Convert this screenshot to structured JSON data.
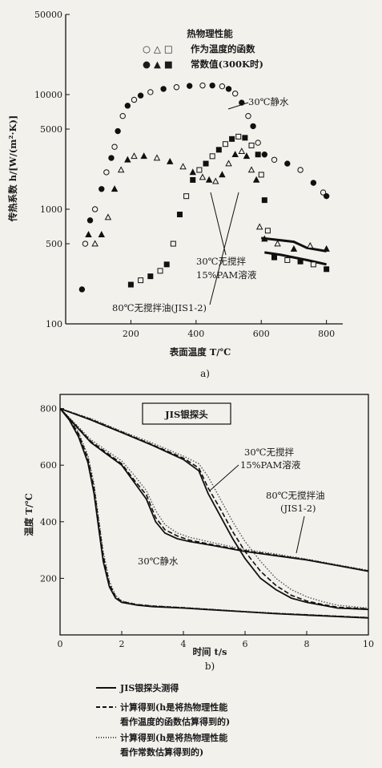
{
  "chart_data": [
    {
      "type": "scatter",
      "panel_caption": "a)",
      "xlabel": "表面温度 T/℃",
      "ylabel": "传热系数 h/[W/(m²·K)]",
      "yscale": "log",
      "xlim": [
        0,
        850
      ],
      "ylim": [
        100,
        50000
      ],
      "x_ticks": [
        "200",
        "400",
        "600",
        "800"
      ],
      "y_ticks": [
        "100",
        "500",
        "1000",
        "5000",
        "10000",
        "50000"
      ],
      "legend_title": "热物理性能",
      "legend": [
        {
          "markers": "○ △ □",
          "label": "作为温度的函数"
        },
        {
          "markers": "● ▲ ■",
          "label": "常数值(300K时)"
        }
      ],
      "series": [
        {
          "name": "30℃静水",
          "marker": "circle",
          "points": [
            [
              50,
              200
            ],
            [
              60,
              500
            ],
            [
              75,
              800
            ],
            [
              90,
              1000
            ],
            [
              110,
              1500
            ],
            [
              125,
              2100
            ],
            [
              140,
              2800
            ],
            [
              150,
              3500
            ],
            [
              160,
              4800
            ],
            [
              175,
              6500
            ],
            [
              190,
              8000
            ],
            [
              210,
              9000
            ],
            [
              230,
              9800
            ],
            [
              260,
              10500
            ],
            [
              300,
              11200
            ],
            [
              340,
              11600
            ],
            [
              380,
              11900
            ],
            [
              420,
              12000
            ],
            [
              450,
              12000
            ],
            [
              480,
              11800
            ],
            [
              500,
              11200
            ],
            [
              520,
              10200
            ],
            [
              540,
              8500
            ],
            [
              560,
              6500
            ],
            [
              575,
              5300
            ],
            [
              590,
              3800
            ],
            [
              610,
              3000
            ],
            [
              640,
              2700
            ],
            [
              680,
              2500
            ],
            [
              720,
              2200
            ],
            [
              760,
              1700
            ],
            [
              790,
              1400
            ],
            [
              800,
              1300
            ]
          ]
        },
        {
          "name": "30℃无搅拌 15%PAM溶液",
          "marker": "triangle",
          "points": [
            [
              70,
              600
            ],
            [
              90,
              500
            ],
            [
              110,
              600
            ],
            [
              130,
              850
            ],
            [
              150,
              1500
            ],
            [
              170,
              2200
            ],
            [
              190,
              2700
            ],
            [
              210,
              2900
            ],
            [
              240,
              2900
            ],
            [
              280,
              2800
            ],
            [
              320,
              2600
            ],
            [
              360,
              2350
            ],
            [
              390,
              2100
            ],
            [
              420,
              1900
            ],
            [
              440,
              1800
            ],
            [
              460,
              1750
            ],
            [
              480,
              2000
            ],
            [
              500,
              2500
            ],
            [
              520,
              3000
            ],
            [
              540,
              3200
            ],
            [
              555,
              2900
            ],
            [
              570,
              2200
            ],
            [
              585,
              1800
            ],
            [
              595,
              700
            ],
            [
              610,
              550
            ],
            [
              650,
              500
            ],
            [
              700,
              450
            ],
            [
              750,
              480
            ],
            [
              800,
              450
            ]
          ]
        },
        {
          "name": "80℃无搅拌油(JIS1-2)",
          "marker": "square",
          "points": [
            [
              200,
              220
            ],
            [
              230,
              240
            ],
            [
              260,
              260
            ],
            [
              290,
              290
            ],
            [
              310,
              330
            ],
            [
              330,
              500
            ],
            [
              350,
              900
            ],
            [
              370,
              1300
            ],
            [
              390,
              1800
            ],
            [
              410,
              2200
            ],
            [
              430,
              2500
            ],
            [
              450,
              2900
            ],
            [
              470,
              3300
            ],
            [
              490,
              3700
            ],
            [
              510,
              4100
            ],
            [
              530,
              4300
            ],
            [
              550,
              4200
            ],
            [
              570,
              3600
            ],
            [
              590,
              3000
            ],
            [
              600,
              2000
            ],
            [
              610,
              1200
            ],
            [
              620,
              650
            ],
            [
              640,
              380
            ],
            [
              680,
              360
            ],
            [
              720,
              350
            ],
            [
              760,
              330
            ],
            [
              800,
              300
            ]
          ]
        }
      ],
      "constant_curves": [
        {
          "points": [
            [
              600,
              560
            ],
            [
              650,
              540
            ],
            [
              700,
              520
            ],
            [
              740,
              460
            ],
            [
              780,
              440
            ],
            [
              800,
              430
            ]
          ]
        },
        {
          "points": [
            [
              610,
              420
            ],
            [
              660,
              400
            ],
            [
              700,
              380
            ],
            [
              740,
              360
            ],
            [
              780,
              340
            ],
            [
              800,
              330
            ]
          ]
        }
      ]
    },
    {
      "type": "line",
      "panel_caption": "b)",
      "xlabel": "时间 t/s",
      "ylabel": "温度 T/℃",
      "xlim": [
        0,
        10
      ],
      "ylim": [
        0,
        850
      ],
      "x_ticks": [
        "0",
        "2",
        "4",
        "6",
        "8",
        "10"
      ],
      "y_ticks": [
        "200",
        "400",
        "600",
        "800"
      ],
      "box_label": "JIS银探头",
      "annotations": [
        "30℃无搅拌",
        "15%PAM溶液",
        "80℃无搅拌油",
        "(JIS1-2)",
        "30℃静水"
      ],
      "legend": [
        {
          "style": "solid",
          "label": "JIS银探头测得"
        },
        {
          "style": "dashed",
          "label": "计算得到(h是将热物理性能看作温度的函数估算得到的)"
        },
        {
          "style": "dotted",
          "label": "计算得到(h是将热物理性能看作常数估算得到的)"
        }
      ],
      "series": [
        {
          "name": "30℃静水",
          "x": [
            0,
            0.3,
            0.6,
            0.9,
            1.1,
            1.25,
            1.4,
            1.6,
            1.8,
            2.0,
            2.5,
            3,
            4,
            5,
            6,
            7,
            8,
            9,
            10
          ],
          "measured": [
            800,
            760,
            700,
            610,
            500,
            380,
            260,
            170,
            130,
            115,
            105,
            100,
            95,
            88,
            82,
            75,
            70,
            65,
            60
          ],
          "calc_function": [
            800,
            765,
            710,
            625,
            520,
            400,
            280,
            180,
            135,
            118,
            107,
            102,
            96,
            89,
            82,
            76,
            71,
            66,
            61
          ],
          "calc_constant": [
            800,
            768,
            715,
            635,
            535,
            415,
            295,
            190,
            140,
            120,
            108,
            103,
            97,
            90,
            83,
            77,
            72,
            67,
            62
          ]
        },
        {
          "name": "80℃无搅拌油",
          "x": [
            0,
            0.5,
            1,
            1.5,
            2,
            2.4,
            2.8,
            3.1,
            3.4,
            3.8,
            4.2,
            5,
            6,
            7,
            8,
            9,
            10
          ],
          "measured": [
            800,
            740,
            680,
            640,
            600,
            540,
            480,
            400,
            360,
            340,
            330,
            315,
            295,
            280,
            265,
            245,
            225
          ],
          "calc_function": [
            800,
            742,
            684,
            645,
            605,
            548,
            495,
            415,
            372,
            350,
            335,
            318,
            298,
            282,
            266,
            246,
            226
          ],
          "calc_constant": [
            800,
            746,
            690,
            652,
            615,
            565,
            510,
            440,
            390,
            360,
            345,
            325,
            302,
            286,
            268,
            248,
            228
          ]
        },
        {
          "name": "30℃无搅拌 15%PAM溶液",
          "x": [
            0,
            1,
            2,
            3,
            4,
            4.5,
            4.8,
            5.2,
            5.6,
            6,
            6.5,
            7,
            7.5,
            8,
            8.5,
            9,
            10
          ],
          "measured": [
            800,
            760,
            715,
            670,
            620,
            580,
            500,
            420,
            340,
            270,
            200,
            160,
            130,
            115,
            105,
            95,
            90
          ],
          "calc_function": [
            800,
            762,
            717,
            672,
            625,
            590,
            520,
            445,
            365,
            295,
            225,
            175,
            140,
            120,
            108,
            98,
            92
          ],
          "calc_constant": [
            800,
            765,
            720,
            678,
            632,
            605,
            560,
            480,
            400,
            330,
            260,
            200,
            160,
            135,
            118,
            105,
            95
          ]
        }
      ]
    }
  ]
}
